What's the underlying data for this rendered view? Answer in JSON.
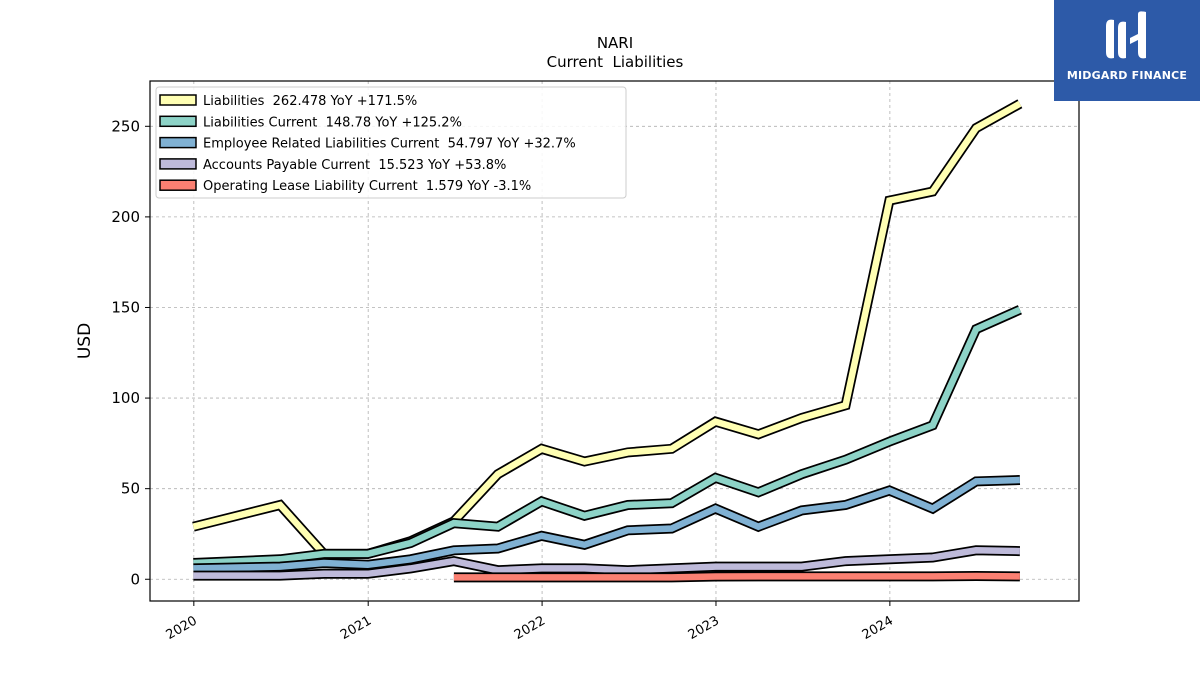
{
  "chart_data": {
    "type": "line",
    "title": "NARI",
    "subtitle": "Current  Liabilities",
    "ylabel": "USD",
    "xlabel": "",
    "x_ticks": [
      "2020",
      "2021",
      "2022",
      "2023",
      "2024"
    ],
    "y_ticks": [
      0,
      50,
      100,
      150,
      200,
      250
    ],
    "xlim": [
      "2019-10-01",
      "2025-02-01"
    ],
    "ylim": [
      -12,
      275
    ],
    "grid": true,
    "legend_position": "top-left",
    "series": [
      {
        "name": "Liabilities  262.478 YoY +171.5%",
        "color": "#ffffb3",
        "points": [
          [
            "2019-12-31",
            29
          ],
          [
            "2020-06-30",
            41
          ],
          [
            "2020-09-30",
            14
          ],
          [
            "2020-12-31",
            14
          ],
          [
            "2021-03-31",
            21
          ],
          [
            "2021-06-30",
            32
          ],
          [
            "2021-09-30",
            58
          ],
          [
            "2021-12-31",
            72
          ],
          [
            "2022-03-31",
            65
          ],
          [
            "2022-06-30",
            70
          ],
          [
            "2022-09-30",
            72
          ],
          [
            "2022-12-31",
            87
          ],
          [
            "2023-03-31",
            80
          ],
          [
            "2023-06-30",
            89
          ],
          [
            "2023-09-30",
            96
          ],
          [
            "2023-12-31",
            209
          ],
          [
            "2024-03-31",
            214
          ],
          [
            "2024-06-30",
            249
          ],
          [
            "2024-09-30",
            262.478
          ]
        ]
      },
      {
        "name": "Liabilities Current  148.78 YoY +125.2%",
        "color": "#8dd3c7",
        "points": [
          [
            "2019-12-31",
            9
          ],
          [
            "2020-06-30",
            11
          ],
          [
            "2020-09-30",
            14
          ],
          [
            "2020-12-31",
            14
          ],
          [
            "2021-03-31",
            20
          ],
          [
            "2021-06-30",
            31
          ],
          [
            "2021-09-30",
            29
          ],
          [
            "2021-12-31",
            43
          ],
          [
            "2022-03-31",
            35
          ],
          [
            "2022-06-30",
            41
          ],
          [
            "2022-09-30",
            42
          ],
          [
            "2022-12-31",
            56
          ],
          [
            "2023-03-31",
            48
          ],
          [
            "2023-06-30",
            58
          ],
          [
            "2023-09-30",
            66
          ],
          [
            "2023-12-31",
            76
          ],
          [
            "2024-03-31",
            85
          ],
          [
            "2024-06-30",
            138
          ],
          [
            "2024-09-30",
            148.78
          ]
        ]
      },
      {
        "name": "Employee Related Liabilities Current  54.797 YoY +32.7%",
        "color": "#80b1d3",
        "points": [
          [
            "2019-12-31",
            6
          ],
          [
            "2020-06-30",
            7
          ],
          [
            "2020-09-30",
            9
          ],
          [
            "2020-12-31",
            8
          ],
          [
            "2021-03-31",
            11
          ],
          [
            "2021-06-30",
            16
          ],
          [
            "2021-09-30",
            17
          ],
          [
            "2021-12-31",
            24
          ],
          [
            "2022-03-31",
            19
          ],
          [
            "2022-06-30",
            27
          ],
          [
            "2022-09-30",
            28
          ],
          [
            "2022-12-31",
            39
          ],
          [
            "2023-03-31",
            29
          ],
          [
            "2023-06-30",
            38
          ],
          [
            "2023-09-30",
            41
          ],
          [
            "2023-12-31",
            49
          ],
          [
            "2024-03-31",
            39
          ],
          [
            "2024-06-30",
            54
          ],
          [
            "2024-09-30",
            54.797
          ]
        ]
      },
      {
        "name": "Accounts Payable Current  15.523 YoY +53.8%",
        "color": "#bebada",
        "points": [
          [
            "2019-12-31",
            2
          ],
          [
            "2020-06-30",
            2
          ],
          [
            "2020-09-30",
            3
          ],
          [
            "2020-12-31",
            3
          ],
          [
            "2021-03-31",
            6
          ],
          [
            "2021-06-30",
            10
          ],
          [
            "2021-09-30",
            5
          ],
          [
            "2021-12-31",
            6
          ],
          [
            "2022-03-31",
            6
          ],
          [
            "2022-06-30",
            5
          ],
          [
            "2022-09-30",
            6
          ],
          [
            "2022-12-31",
            7
          ],
          [
            "2023-03-31",
            7
          ],
          [
            "2023-06-30",
            7
          ],
          [
            "2023-09-30",
            10
          ],
          [
            "2023-12-31",
            11
          ],
          [
            "2024-03-31",
            12
          ],
          [
            "2024-06-30",
            16
          ],
          [
            "2024-09-30",
            15.523
          ]
        ]
      },
      {
        "name": "Operating Lease Liability Current  1.579 YoY -3.1%",
        "color": "#fb8072",
        "points": [
          [
            "2021-06-30",
            1
          ],
          [
            "2021-09-30",
            1
          ],
          [
            "2021-12-31",
            1
          ],
          [
            "2022-03-31",
            1
          ],
          [
            "2022-06-30",
            1
          ],
          [
            "2022-09-30",
            1
          ],
          [
            "2022-12-31",
            1.5
          ],
          [
            "2023-03-31",
            1.6
          ],
          [
            "2023-06-30",
            1.6
          ],
          [
            "2023-09-30",
            1.6
          ],
          [
            "2023-12-31",
            1.6
          ],
          [
            "2024-03-31",
            1.6
          ],
          [
            "2024-06-30",
            1.8
          ],
          [
            "2024-09-30",
            1.579
          ]
        ]
      }
    ]
  },
  "logo": {
    "text": "MIDGARD FINANCE",
    "bg_color": "#2d5aa8"
  }
}
